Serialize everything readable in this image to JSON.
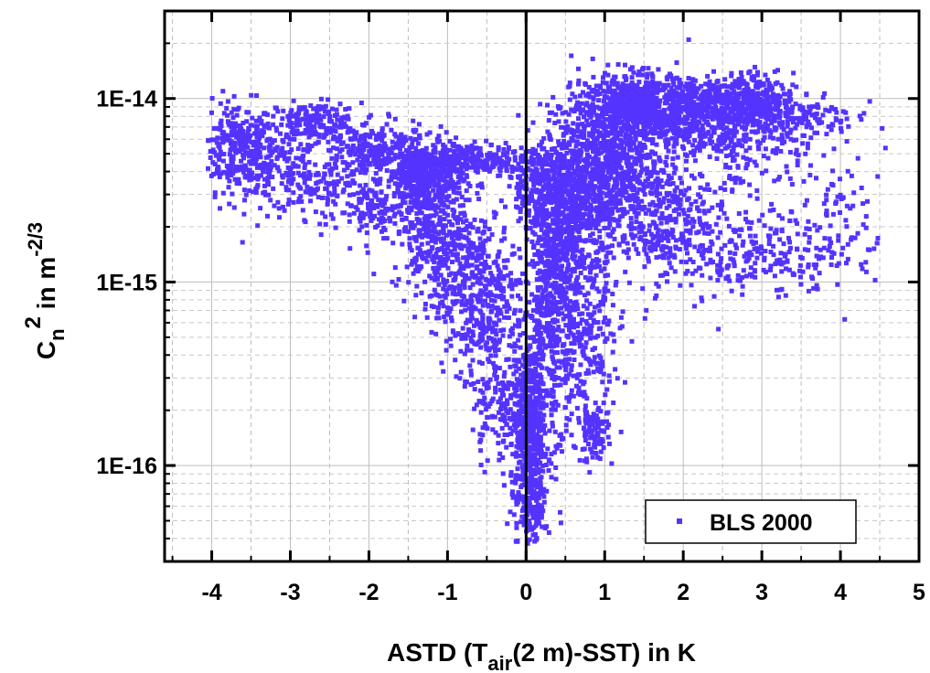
{
  "chart_data": {
    "type": "scatter",
    "xlabel": {
      "prefix": "ASTD (T",
      "sub": "air",
      "suffix": "(2 m)-SST) in K"
    },
    "ylabel": {
      "base": "C",
      "sub": "n",
      "sup": "2",
      "mid": " in m",
      "unit_sup": "-2/3"
    },
    "x_ticks": [
      -4,
      -3,
      -2,
      -1,
      0,
      1,
      2,
      3,
      4,
      5
    ],
    "x_tick_labels": [
      "-4",
      "-3",
      "-2",
      "-1",
      "0",
      "1",
      "2",
      "3",
      "4",
      "5"
    ],
    "y_ticks": [
      1e-16,
      1e-15,
      1e-14
    ],
    "y_tick_labels": [
      "1E-16",
      "1E-15",
      "1E-14"
    ],
    "xlim": [
      -4.6,
      5.0
    ],
    "ylim": [
      3e-17,
      3e-14
    ],
    "y_scale": "log",
    "grid": true,
    "zero_line_x": 0,
    "legend_position": "bottom-right",
    "color": "#5533ff",
    "series": [
      {
        "name": "BLS 2000",
        "clusters": [
          {
            "x": -3.7,
            "y": 5.5e-15,
            "sx": 0.25,
            "sy": 0.12,
            "n": 260
          },
          {
            "x": -3.3,
            "y": 4.2e-15,
            "sx": 0.3,
            "sy": 0.12,
            "n": 160
          },
          {
            "x": -2.7,
            "y": 7.5e-15,
            "sx": 0.3,
            "sy": 0.05,
            "n": 170
          },
          {
            "x": -2.0,
            "y": 5.2e-15,
            "sx": 0.4,
            "sy": 0.08,
            "n": 280
          },
          {
            "x": -2.6,
            "y": 3.2e-15,
            "sx": 0.35,
            "sy": 0.08,
            "n": 120
          },
          {
            "x": -1.9,
            "y": 2.4e-15,
            "sx": 0.25,
            "sy": 0.07,
            "n": 100
          },
          {
            "x": -1.3,
            "y": 3.6e-15,
            "sx": 0.25,
            "sy": 0.1,
            "n": 450
          },
          {
            "x": -0.7,
            "y": 4.6e-15,
            "sx": 0.45,
            "sy": 0.05,
            "n": 260
          },
          {
            "x": -1.1,
            "y": 1.7e-15,
            "sx": 0.3,
            "sy": 0.14,
            "n": 320
          },
          {
            "x": -0.6,
            "y": 8e-16,
            "sx": 0.3,
            "sy": 0.2,
            "n": 420
          },
          {
            "x": -0.3,
            "y": 2.2e-16,
            "sx": 0.2,
            "sy": 0.16,
            "n": 180
          },
          {
            "x": 0.05,
            "y": 1.5e-16,
            "sx": 0.12,
            "sy": 0.25,
            "n": 550
          },
          {
            "x": 0.1,
            "y": 6e-17,
            "sx": 0.08,
            "sy": 0.1,
            "n": 100
          },
          {
            "x": 0.35,
            "y": 9e-16,
            "sx": 0.15,
            "sy": 0.35,
            "n": 550
          },
          {
            "x": 0.15,
            "y": 3.5e-15,
            "sx": 0.2,
            "sy": 0.12,
            "n": 180
          },
          {
            "x": 0.55,
            "y": 2.5e-15,
            "sx": 0.25,
            "sy": 0.2,
            "n": 520
          },
          {
            "x": 0.8,
            "y": 5e-16,
            "sx": 0.2,
            "sy": 0.3,
            "n": 260
          },
          {
            "x": 0.85,
            "y": 1.5e-16,
            "sx": 0.1,
            "sy": 0.08,
            "n": 80
          },
          {
            "x": 1.0,
            "y": 4.5e-15,
            "sx": 0.3,
            "sy": 0.18,
            "n": 650
          },
          {
            "x": 1.4,
            "y": 9.5e-15,
            "sx": 0.35,
            "sy": 0.08,
            "n": 550
          },
          {
            "x": 2.0,
            "y": 8e-15,
            "sx": 0.4,
            "sy": 0.08,
            "n": 420
          },
          {
            "x": 2.7,
            "y": 9.5e-15,
            "sx": 0.35,
            "sy": 0.08,
            "n": 380
          },
          {
            "x": 3.3,
            "y": 8e-15,
            "sx": 0.45,
            "sy": 0.08,
            "n": 220
          },
          {
            "x": 1.6,
            "y": 2.4e-15,
            "sx": 0.35,
            "sy": 0.18,
            "n": 320
          },
          {
            "x": 2.4,
            "y": 1.6e-15,
            "sx": 0.5,
            "sy": 0.15,
            "n": 200
          },
          {
            "x": 3.8,
            "y": 2.2e-15,
            "sx": 0.4,
            "sy": 0.18,
            "n": 120
          },
          {
            "x": 3.3,
            "y": 1.3e-15,
            "sx": 0.4,
            "sy": 0.1,
            "n": 70
          },
          {
            "x": 2.5,
            "y": 5e-15,
            "sx": 0.6,
            "sy": 0.12,
            "n": 180
          }
        ]
      }
    ]
  }
}
